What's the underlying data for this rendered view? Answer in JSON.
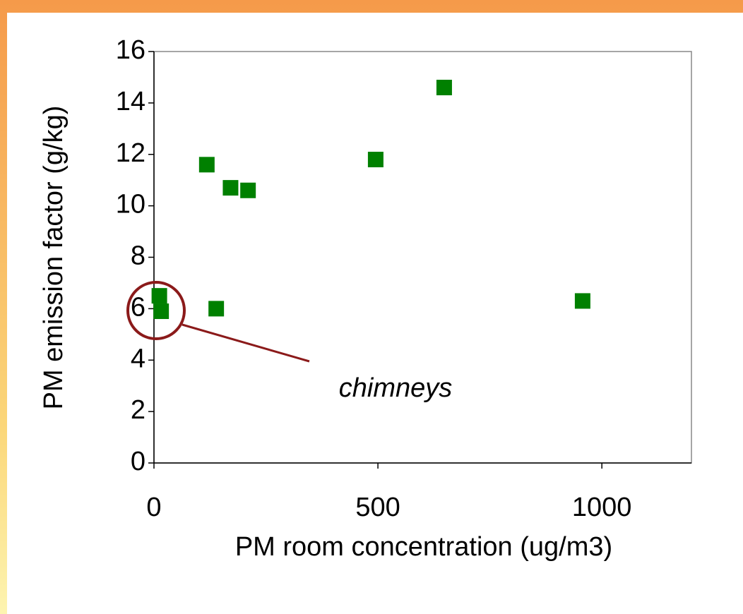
{
  "chart_data": {
    "type": "scatter",
    "x_label": "PM room concentration (ug/m3)",
    "y_label": "PM emission factor (g/kg)",
    "annotation": "chimneys",
    "series": [
      {
        "color": "#008000",
        "x": [
          12,
          16,
          118,
          139,
          171,
          210,
          495,
          648,
          957
        ],
        "values": [
          6.5,
          5.9,
          11.6,
          6.0,
          10.7,
          10.6,
          11.8,
          14.6,
          6.3
        ]
      }
    ],
    "xlim": [
      0,
      1200
    ],
    "xticks": [
      0,
      500,
      1000
    ],
    "ylim": [
      0,
      16
    ],
    "yticks": [
      0,
      2,
      4,
      6,
      8,
      10,
      12,
      14,
      16
    ]
  }
}
